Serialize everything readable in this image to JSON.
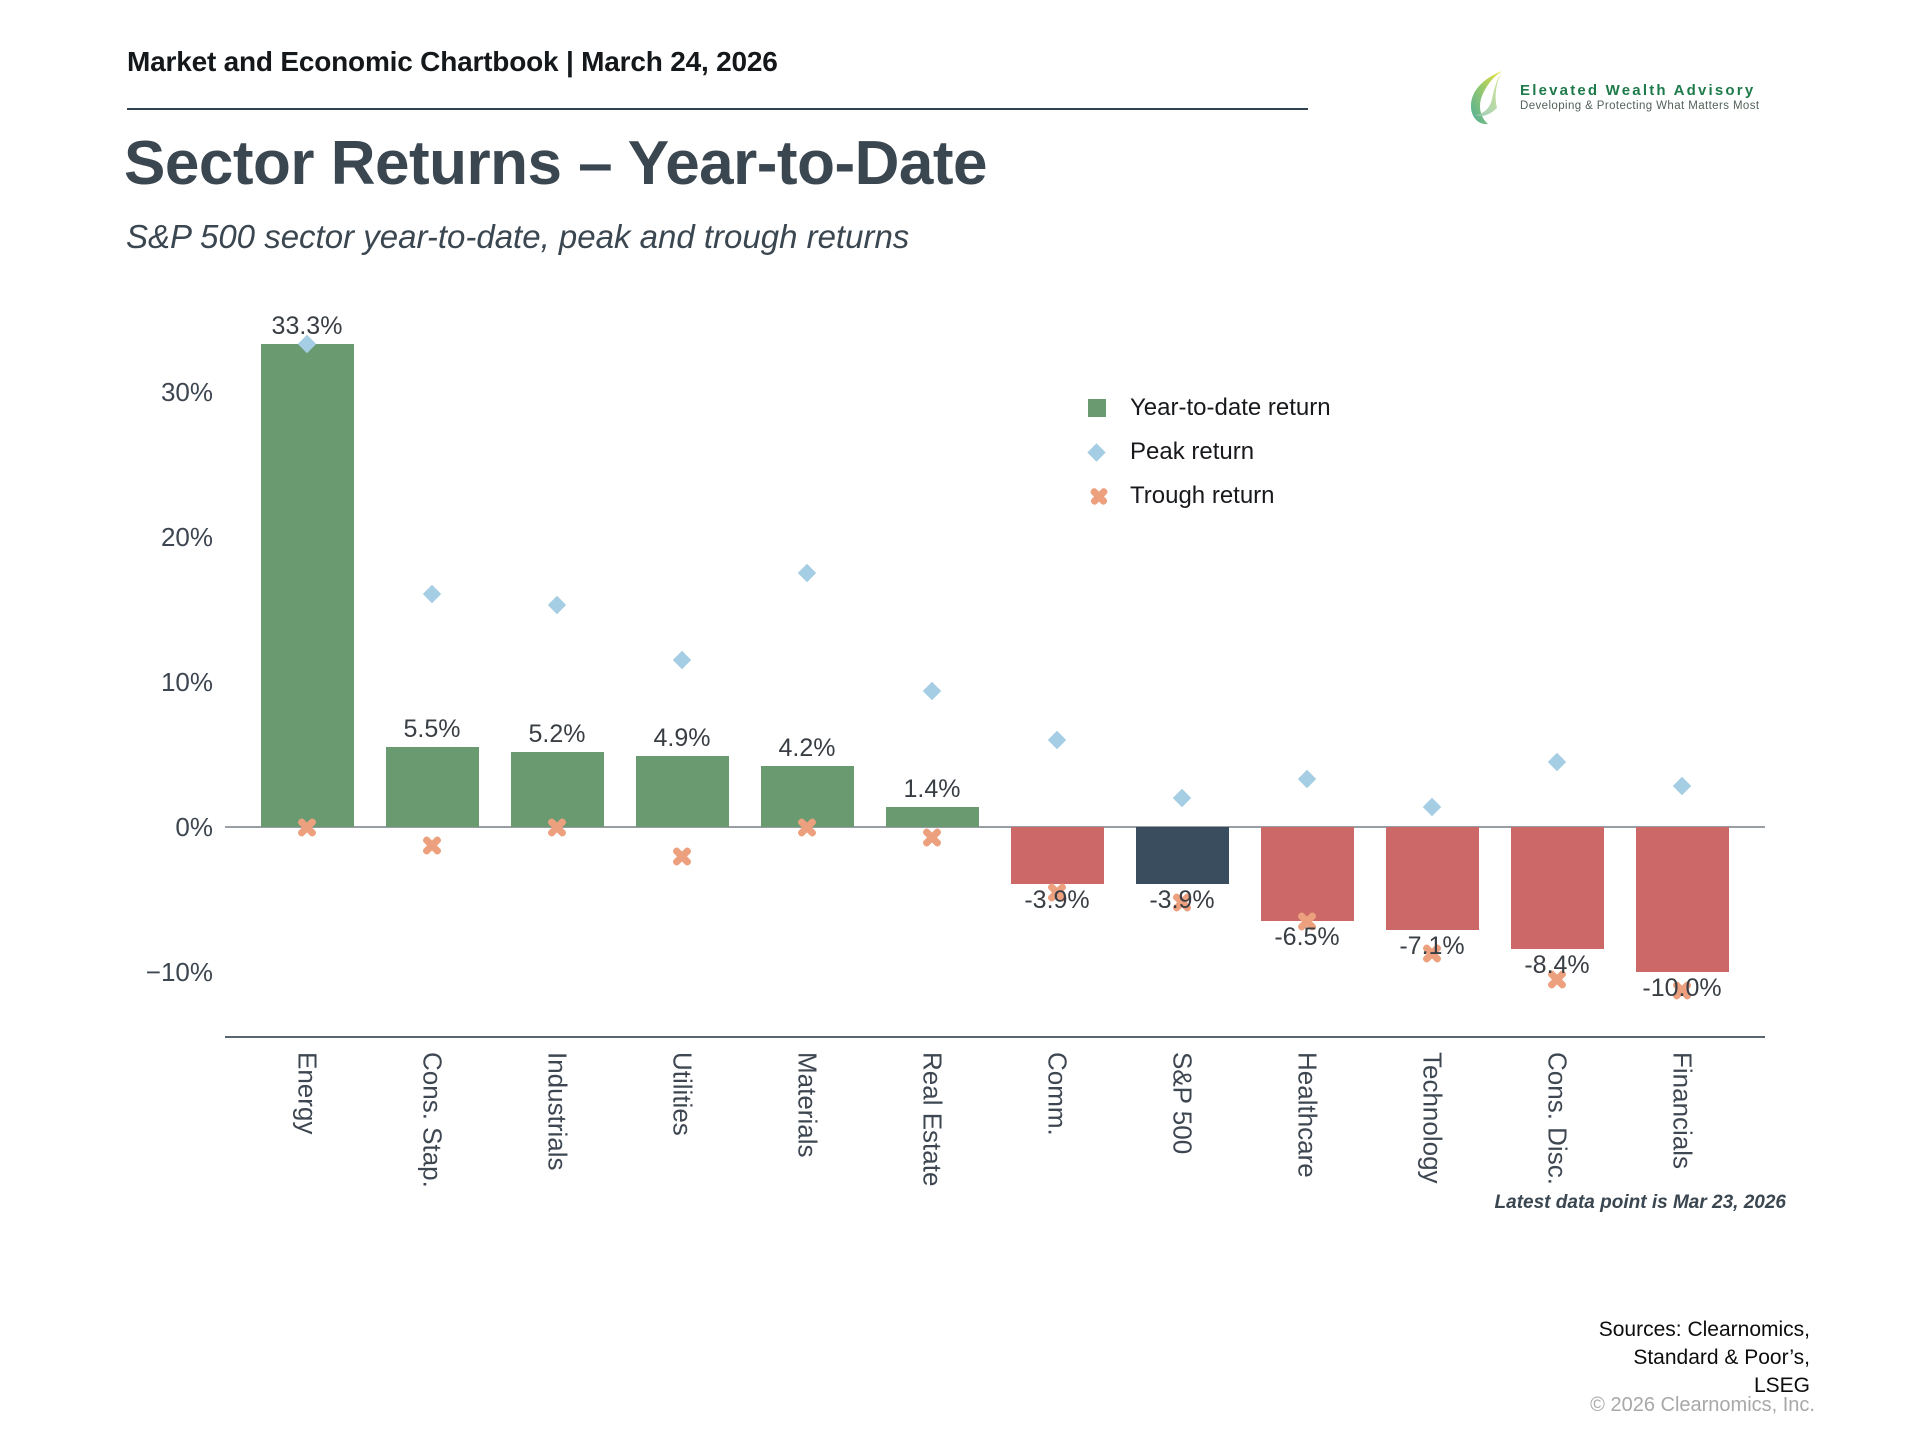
{
  "header": {
    "chartbook_title": "Market and Economic Chartbook | March 24, 2026",
    "logo": {
      "name": "Elevated Wealth Advisory",
      "tagline": "Developing & Protecting What Matters Most"
    }
  },
  "title": "Sector Returns – Year-to-Date",
  "subtitle": "S&P 500 sector year-to-date, peak and trough returns",
  "legend": [
    {
      "label": "Year-to-date return",
      "marker": "square",
      "color": "#6A9A70"
    },
    {
      "label": "Peak return",
      "marker": "diamond",
      "color": "#A5CDE3"
    },
    {
      "label": "Trough return",
      "marker": "x",
      "color": "#EDA07E"
    }
  ],
  "chart_data": {
    "type": "bar",
    "categories": [
      "Energy",
      "Cons. Stap.",
      "Industrials",
      "Utilities",
      "Materials",
      "Real Estate",
      "Comm.",
      "S&P 500",
      "Healthcare",
      "Technology",
      "Cons. Disc.",
      "Financials"
    ],
    "series": [
      {
        "name": "Year-to-date return",
        "values": [
          33.3,
          5.5,
          5.2,
          4.9,
          4.2,
          1.4,
          -3.9,
          -3.9,
          -6.5,
          -7.1,
          -8.4,
          -10.0
        ]
      },
      {
        "name": "Peak return",
        "values": [
          33.3,
          16.1,
          15.3,
          11.5,
          17.5,
          9.4,
          6.0,
          2.0,
          3.3,
          1.4,
          4.5,
          2.8
        ]
      },
      {
        "name": "Trough return",
        "values": [
          0.0,
          -1.3,
          0.0,
          -2.0,
          0.0,
          -0.7,
          -4.5,
          -5.2,
          -6.5,
          -8.7,
          -10.5,
          -11.3
        ]
      }
    ],
    "bar_labels": [
      "33.3%",
      "5.5%",
      "5.2%",
      "4.9%",
      "4.2%",
      "1.4%",
      "-3.9%",
      "-3.9%",
      "-6.5%",
      "-7.1%",
      "-8.4%",
      "-10.0%"
    ],
    "bar_colors": [
      "#6A9A70",
      "#6A9A70",
      "#6A9A70",
      "#6A9A70",
      "#6A9A70",
      "#6A9A70",
      "#CC6867",
      "#3A4D5E",
      "#CC6867",
      "#CC6867",
      "#CC6867",
      "#CC6867"
    ],
    "palette": {
      "ytd_positive": "#6A9A70",
      "ytd_negative": "#CC6867",
      "benchmark": "#3A4D5E",
      "peak": "#A5CDE3",
      "trough": "#EDA07E"
    },
    "ytick_labels": [
      "30%",
      "20%",
      "10%",
      "0%",
      "−10%"
    ],
    "ytick_values": [
      30,
      20,
      10,
      0,
      -10
    ],
    "ylim": [
      -15,
      36
    ],
    "grid": "off",
    "legend_position": "upper-right",
    "note": "Latest data point is Mar 23, 2026"
  },
  "footer": {
    "sources_lines": [
      "Sources: Clearnomics,",
      "Standard & Poor’s,",
      "LSEG"
    ],
    "copyright": "© 2026 Clearnomics, Inc."
  }
}
